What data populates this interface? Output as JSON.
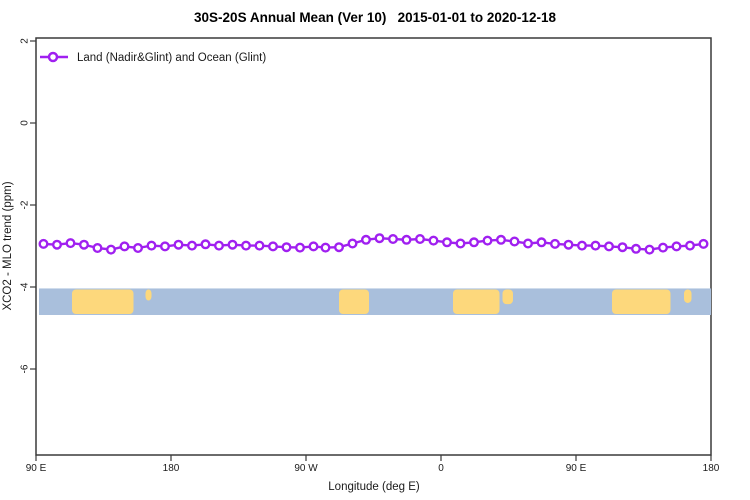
{
  "title": "30S-20S Annual Mean (Ver 10)   2015-01-01 to 2020-12-18",
  "x_axis": {
    "label": "Longitude (deg E)",
    "ticks": [
      "90 E",
      "180",
      "90 W",
      "0",
      "90 E",
      "180"
    ]
  },
  "y_axis": {
    "label": "XCO2 - MLO trend (ppm)",
    "ticks": [
      "2",
      "0",
      "-2",
      "-4",
      "-6"
    ]
  },
  "colors": {
    "series_purple": "#A020F0",
    "marker_fill": "#FFFFFF",
    "ocean_blue": "#A9BFDC",
    "land_yellow": "#FDD87C",
    "axis_line": "#3a3a3a"
  },
  "chart_data": {
    "type": "line",
    "title": "30S-20S Annual Mean (Ver 10)   2015-01-01 to 2020-12-18",
    "xlabel": "Longitude (deg E)",
    "ylabel": "XCO2 - MLO trend (ppm)",
    "x_axis_range_deg_east": [
      90,
      540
    ],
    "x_tick_values_deg_east": [
      90,
      180,
      270,
      360,
      450,
      540
    ],
    "x_tick_labels": [
      "90 E",
      "180",
      "90 W",
      "0",
      "90 E",
      "180"
    ],
    "y_tick_values": [
      2,
      0,
      -2,
      -4,
      -6
    ],
    "y_axis_range": [
      -8.1,
      2.1
    ],
    "grid": false,
    "legend": {
      "position": "top-left",
      "entries": [
        {
          "label": "Land (Nadir&Glint) and Ocean (Glint)",
          "color": "#A020F0",
          "marker": "open-circle"
        }
      ]
    },
    "series": [
      {
        "name": "Land (Nadir&Glint) and Ocean (Glint)",
        "color": "#A020F0",
        "marker": "open-circle",
        "marker_fill": "#FFFFFF",
        "x_deg_east": [
          95,
          104,
          113,
          122,
          131,
          140,
          149,
          158,
          167,
          176,
          185,
          194,
          203,
          212,
          221,
          230,
          239,
          248,
          257,
          266,
          275,
          283,
          292,
          301,
          310,
          319,
          328,
          337,
          346,
          355,
          364,
          373,
          382,
          391,
          400,
          409,
          418,
          427,
          436,
          445,
          454,
          463,
          472,
          481,
          490,
          499,
          508,
          517,
          526,
          535
        ],
        "y_ppm": [
          -2.96,
          -2.98,
          -2.94,
          -2.98,
          -3.06,
          -3.1,
          -3.02,
          -3.06,
          -3.0,
          -3.02,
          -2.98,
          -3.0,
          -2.97,
          -3.0,
          -2.98,
          -3.0,
          -3.0,
          -3.02,
          -3.04,
          -3.05,
          -3.02,
          -3.05,
          -3.04,
          -2.95,
          -2.86,
          -2.82,
          -2.84,
          -2.86,
          -2.84,
          -2.88,
          -2.92,
          -2.95,
          -2.92,
          -2.88,
          -2.86,
          -2.9,
          -2.95,
          -2.92,
          -2.96,
          -2.98,
          -3.0,
          -3.0,
          -3.02,
          -3.04,
          -3.08,
          -3.1,
          -3.05,
          -3.02,
          -3.0,
          -2.96
        ]
      }
    ],
    "land_ocean_strip": {
      "y_range_ppm": [
        -4.7,
        -4.05
      ],
      "ocean_color": "#A9BFDC",
      "land_color": "#FDD87C",
      "land_patches": [
        {
          "name": "australia",
          "lon_range_deg_east": [
            114,
            155
          ],
          "height_frac": 1
        },
        {
          "name": "new-caledonia",
          "lon_range_deg_east": [
            163,
            167
          ],
          "height_frac": 0.45
        },
        {
          "name": "south-america",
          "lon_range_deg_east": [
            292,
            312
          ],
          "height_frac": 1
        },
        {
          "name": "africa",
          "lon_range_deg_east": [
            368,
            399
          ],
          "height_frac": 1
        },
        {
          "name": "madagascar",
          "lon_range_deg_east": [
            401,
            408
          ],
          "height_frac": 0.6
        },
        {
          "name": "australia-repeat",
          "lon_range_deg_east": [
            474,
            513
          ],
          "height_frac": 1
        },
        {
          "name": "new-caledonia-repeat",
          "lon_range_deg_east": [
            522,
            527
          ],
          "height_frac": 0.55
        }
      ]
    }
  }
}
